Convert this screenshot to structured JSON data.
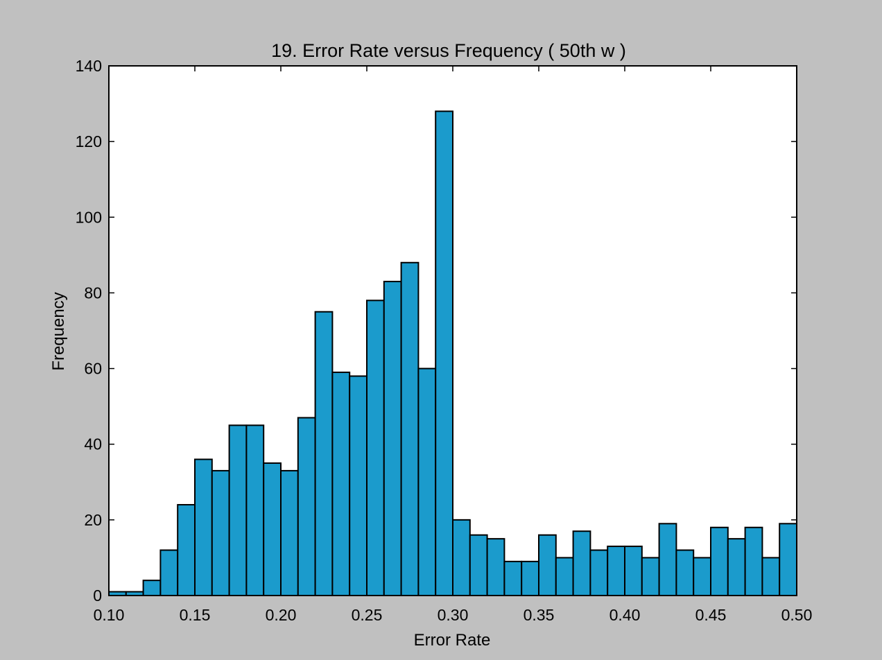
{
  "window": {
    "background": "#c0c0c0"
  },
  "chart_data": {
    "type": "bar",
    "title": "19. Error Rate versus Frequency ( 50th w )",
    "xlabel": "Error Rate",
    "ylabel": "Frequency",
    "xlim": [
      0.1,
      0.5
    ],
    "ylim": [
      0,
      140
    ],
    "xticks": [
      "0.10",
      "0.15",
      "0.20",
      "0.25",
      "0.30",
      "0.35",
      "0.40",
      "0.45",
      "0.50"
    ],
    "yticks": [
      "0",
      "20",
      "40",
      "60",
      "80",
      "100",
      "120",
      "140"
    ],
    "bin_width": 0.01,
    "bins": [
      0.1,
      0.11,
      0.12,
      0.13,
      0.14,
      0.15,
      0.16,
      0.17,
      0.18,
      0.19,
      0.2,
      0.21,
      0.22,
      0.23,
      0.24,
      0.25,
      0.26,
      0.27,
      0.28,
      0.29,
      0.3,
      0.31,
      0.32,
      0.33,
      0.34,
      0.35,
      0.36,
      0.37,
      0.38,
      0.39,
      0.4,
      0.41,
      0.42,
      0.43,
      0.44,
      0.45,
      0.46,
      0.47,
      0.48,
      0.49
    ],
    "values": [
      1,
      1,
      4,
      12,
      24,
      36,
      33,
      45,
      45,
      35,
      33,
      47,
      75,
      59,
      58,
      78,
      83,
      88,
      60,
      128,
      20,
      16,
      15,
      9,
      9,
      16,
      10,
      17,
      12,
      13,
      13,
      10,
      19,
      12,
      10,
      18,
      15,
      18,
      10,
      19
    ],
    "bar_color": "#1b9bcc",
    "edge_color": "#000000",
    "plot_background": "#ffffff",
    "grid": false,
    "legend": false
  }
}
